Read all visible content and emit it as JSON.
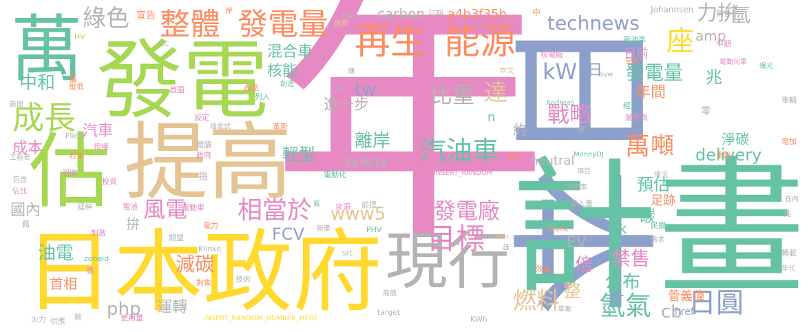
{
  "colors": {
    "pink": "#e78ac3",
    "green": "#66c2a5",
    "lime": "#a6d854",
    "yellow": "#ffd92f",
    "tan": "#e5c494",
    "blue": "#8da0cb",
    "orange": "#fc8d62",
    "gray": "#b3b3b3"
  },
  "words": [
    {
      "text": "年",
      "color": "pink"
    },
    {
      "text": "日本",
      "color": "blue"
    },
    {
      "text": "計畫",
      "color": "green"
    },
    {
      "text": "發電",
      "color": "lime"
    },
    {
      "text": "日本政府",
      "color": "yellow"
    },
    {
      "text": "提高",
      "color": "tan"
    },
    {
      "text": "萬",
      "color": "green"
    },
    {
      "text": "估",
      "color": "lime"
    },
    {
      "text": "現行",
      "color": "gray"
    },
    {
      "text": "再生",
      "color": "orange"
    },
    {
      "text": "能源",
      "color": "orange"
    },
    {
      "text": "整體",
      "color": "orange"
    },
    {
      "text": "發電量",
      "color": "orange"
    },
    {
      "text": "成長",
      "color": "lime"
    },
    {
      "text": "綠色",
      "color": "gray"
    },
    {
      "text": "座",
      "color": "yellow"
    },
    {
      "text": "力拚",
      "color": "gray"
    },
    {
      "text": "氫",
      "color": "gray"
    },
    {
      "text": "technews",
      "color": "blue"
    },
    {
      "text": "amp",
      "color": "gray"
    },
    {
      "text": "kW",
      "color": "blue"
    },
    {
      "text": "日",
      "color": "blue"
    },
    {
      "text": "比重",
      "color": "gray"
    },
    {
      "text": "達",
      "color": "tan"
    },
    {
      "text": "戰略",
      "color": "pink"
    },
    {
      "text": "萬",
      "color": "orange"
    },
    {
      "text": "噸",
      "color": "orange"
    },
    {
      "text": "發電量",
      "color": "green"
    },
    {
      "text": "年間",
      "color": "orange"
    },
    {
      "text": "兆",
      "color": "green"
    },
    {
      "text": "日前",
      "color": "pink"
    },
    {
      "text": "混合車",
      "color": "green"
    },
    {
      "text": "核能",
      "color": "green"
    },
    {
      "text": "中和",
      "color": "green"
    },
    {
      "text": "汽車",
      "color": "pink"
    },
    {
      "text": "成本",
      "color": "pink"
    },
    {
      "text": "輕型",
      "color": "green"
    },
    {
      "text": "汽油車",
      "color": "green"
    },
    {
      "text": "離岸",
      "color": "green"
    },
    {
      "text": "www",
      "color": "gray"
    },
    {
      "text": "進一步",
      "color": "gray"
    },
    {
      "text": "tw",
      "color": "blue"
    },
    {
      "text": "約",
      "color": "gray"
    },
    {
      "text": "n",
      "color": "green"
    },
    {
      "text": "delivery",
      "color": "green"
    },
    {
      "text": "淨碳",
      "color": "green"
    },
    {
      "text": "預估",
      "color": "green"
    },
    {
      "text": "足跡",
      "color": "orange"
    },
    {
      "text": "碳",
      "color": "green"
    },
    {
      "text": "國內",
      "color": "gray"
    },
    {
      "text": "風電",
      "color": "pink"
    },
    {
      "text": "相當於",
      "color": "pink"
    },
    {
      "text": "www5",
      "color": "tan"
    },
    {
      "text": "發電廠",
      "color": "pink"
    },
    {
      "text": "目標",
      "color": "pink"
    },
    {
      "text": "FCV",
      "color": "blue"
    },
    {
      "text": "EV",
      "color": "gray"
    },
    {
      "text": "倍",
      "color": "pink"
    },
    {
      "text": "公布",
      "color": "green"
    },
    {
      "text": "禁售",
      "color": "pink"
    },
    {
      "text": "油電",
      "color": "green"
    },
    {
      "text": "減碳",
      "color": "orange"
    },
    {
      "text": "首相",
      "color": "orange"
    },
    {
      "text": "燃料",
      "color": "tan"
    },
    {
      "text": "整",
      "color": "tan"
    },
    {
      "text": "php",
      "color": "gray"
    },
    {
      "text": "運轉",
      "color": "gray"
    },
    {
      "text": "氫氣",
      "color": "green"
    },
    {
      "text": "cb",
      "color": "gray"
    },
    {
      "text": "日圓",
      "color": "blue"
    },
    {
      "text": "菅義偉",
      "color": "orange"
    },
    {
      "text": "href",
      "color": "blue"
    },
    {
      "text": "carbon",
      "color": "gray"
    },
    {
      "text": "a4b3f35b",
      "color": "orange"
    },
    {
      "text": "neutral",
      "color": "gray"
    },
    {
      "text": "拚",
      "color": "gray"
    },
    {
      "text": "宣告",
      "color": "orange"
    },
    {
      "text": "img",
      "color": "gray"
    },
    {
      "text": "Johannsen",
      "color": "gray"
    },
    {
      "text": "可期",
      "color": "gray"
    },
    {
      "text": "銷售",
      "color": "gray"
    },
    {
      "text": "中",
      "color": "orange"
    },
    {
      "text": "岸",
      "color": "orange"
    },
    {
      "text": "推動",
      "color": "tan"
    },
    {
      "text": "HV",
      "color": "lime"
    },
    {
      "text": "CC",
      "color": "gray"
    },
    {
      "text": "電池車",
      "color": "green"
    },
    {
      "text": "中期",
      "color": "pink"
    },
    {
      "text": "核電廠",
      "color": "pink"
    },
    {
      "text": "全數",
      "color": "orange"
    },
    {
      "text": "電動化車",
      "color": "pink"
    },
    {
      "text": "曝光",
      "color": "green"
    },
    {
      "text": "本文",
      "color": "tan"
    },
    {
      "text": "avw",
      "color": "gray"
    },
    {
      "text": "二成",
      "color": "gray"
    },
    {
      "text": "傳",
      "color": "gray"
    },
    {
      "text": "蓄",
      "color": "orange"
    },
    {
      "text": "壓低",
      "color": "orange"
    },
    {
      "text": "首圖",
      "color": "pink"
    },
    {
      "text": "創造",
      "color": "green"
    },
    {
      "text": "產品",
      "color": "orange"
    },
    {
      "text": "列入",
      "color": "green"
    },
    {
      "text": "新聞",
      "color": "gray"
    },
    {
      "text": "設定",
      "color": "pink"
    },
    {
      "text": "插電式",
      "color": "gray"
    },
    {
      "text": "革新",
      "color": "orange"
    },
    {
      "text": "Andreas",
      "color": "green"
    },
    {
      "text": "經濟",
      "color": "green"
    },
    {
      "text": "變更為",
      "color": "pink"
    },
    {
      "text": "零",
      "color": "gray"
    },
    {
      "text": "需",
      "color": "gray"
    },
    {
      "text": "車輛",
      "color": "gray"
    },
    {
      "text": "Flickr",
      "color": "gray"
    },
    {
      "text": "若重",
      "color": "orange"
    },
    {
      "text": "授權",
      "color": "pink"
    },
    {
      "text": "工程表",
      "color": "gray"
    },
    {
      "text": "回收",
      "color": "pink"
    },
    {
      "text": "閱讀",
      "color": "gray"
    },
    {
      "text": "政府",
      "color": "pink"
    },
    {
      "text": "電動化",
      "color": "green"
    },
    {
      "text": "INSERT_RANDOM",
      "color": "pink"
    },
    {
      "text": "產能",
      "color": "orange"
    },
    {
      "text": "MoneyDJ",
      "color": "green"
    },
    {
      "text": "項目",
      "color": "gray"
    },
    {
      "text": "重點",
      "color": "orange"
    },
    {
      "text": "增加",
      "color": "orange"
    },
    {
      "text": "包含",
      "color": "gray"
    },
    {
      "text": "投資",
      "color": "pink"
    },
    {
      "text": "情況",
      "color": "gray"
    },
    {
      "text": "利用率",
      "color": "gray"
    },
    {
      "text": "佔比",
      "color": "pink"
    },
    {
      "text": "指",
      "color": "gray"
    },
    {
      "text": "延伸",
      "color": "gray"
    },
    {
      "text": "電池",
      "color": "pink"
    },
    {
      "text": "電動車",
      "color": "pink"
    },
    {
      "text": "氦",
      "color": "green"
    },
    {
      "text": "來源",
      "color": "pink"
    },
    {
      "text": "前提",
      "color": "gray"
    },
    {
      "text": "導入量",
      "color": "gray"
    },
    {
      "text": "在內",
      "color": "gray"
    },
    {
      "text": "藉",
      "color": "gray"
    },
    {
      "text": "刺激",
      "color": "pink"
    },
    {
      "text": "電力",
      "color": "orange"
    },
    {
      "text": "新車",
      "color": "gray"
    },
    {
      "text": "PHV",
      "color": "green"
    },
    {
      "text": "_blank",
      "color": "orange"
    },
    {
      "text": "民間",
      "color": "green"
    },
    {
      "text": "純",
      "color": "gray"
    },
    {
      "text": "期望",
      "color": "gray"
    },
    {
      "text": "Klinke",
      "color": "gray"
    },
    {
      "text": "Nm",
      "color": "tan"
    },
    {
      "text": "需求",
      "color": "gray"
    },
    {
      "text": "zoneid",
      "color": "green"
    },
    {
      "text": "src",
      "color": "gray"
    },
    {
      "text": "轉載",
      "color": "gray"
    },
    {
      "text": "間",
      "color": "pink"
    },
    {
      "text": "技術",
      "color": "gray"
    },
    {
      "text": "效益",
      "color": "orange"
    },
    {
      "text": "年代",
      "color": "gray"
    },
    {
      "text": "對象",
      "color": "orange"
    },
    {
      "text": "高值",
      "color": "gray"
    },
    {
      "text": "火力",
      "color": "gray"
    },
    {
      "text": "供應",
      "color": "gray"
    },
    {
      "text": "款",
      "color": "gray"
    },
    {
      "text": "使用量",
      "color": "pink"
    },
    {
      "text": "INSERT_RANDOM_NUMBER_HERE",
      "color": "yellow"
    },
    {
      "text": "target",
      "color": "gray"
    },
    {
      "text": "KWh",
      "color": "gray"
    },
    {
      "text": "草案",
      "color": "gray"
    },
    {
      "text": "ck",
      "color": "green"
    },
    {
      "text": "a",
      "color": "gray"
    }
  ]
}
